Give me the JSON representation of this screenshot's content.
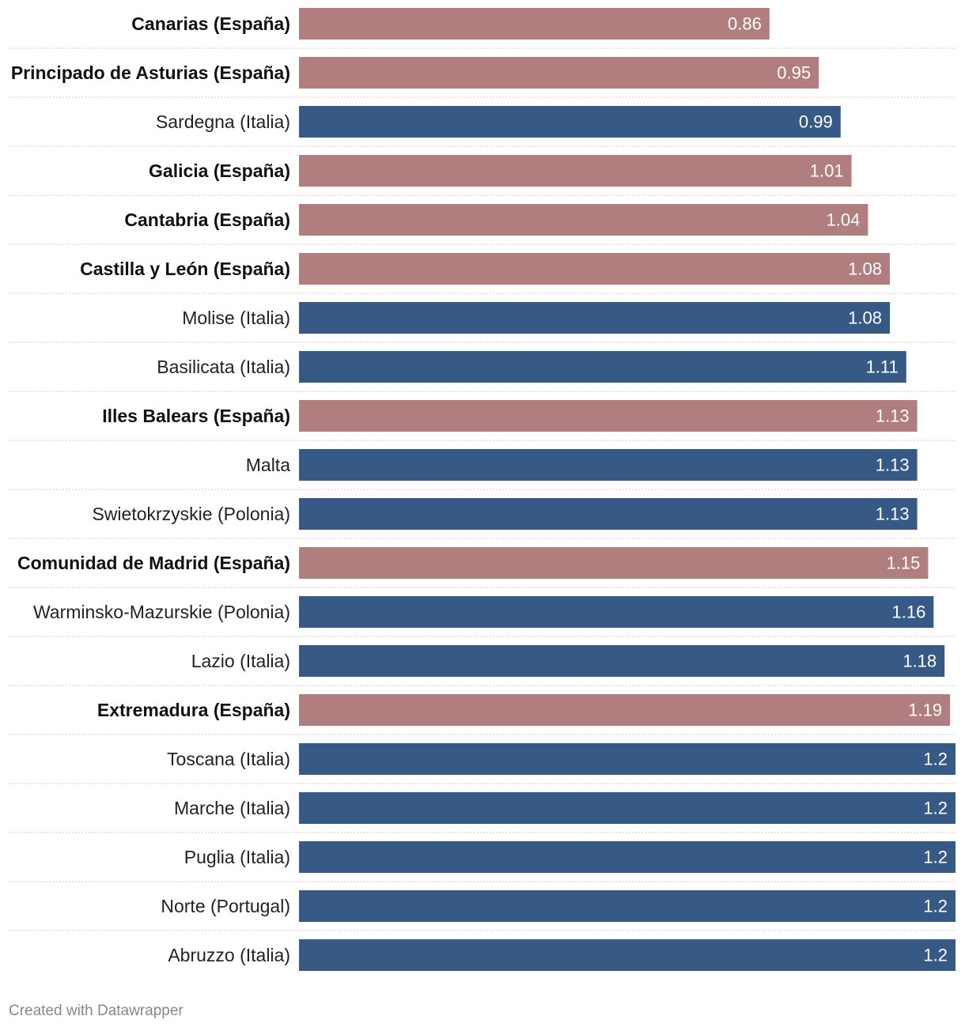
{
  "chart_data": {
    "type": "bar",
    "orientation": "horizontal",
    "xlim": [
      0,
      1.2
    ],
    "colors": {
      "spain": "#b07e7e",
      "other": "#365a85"
    },
    "rows": [
      {
        "label": "Canarias (España)",
        "value": 0.86,
        "display": "0.86",
        "highlight": true
      },
      {
        "label": "Principado de Asturias (España)",
        "value": 0.95,
        "display": "0.95",
        "highlight": true
      },
      {
        "label": "Sardegna (Italia)",
        "value": 0.99,
        "display": "0.99",
        "highlight": false
      },
      {
        "label": "Galicia (España)",
        "value": 1.01,
        "display": "1.01",
        "highlight": true
      },
      {
        "label": "Cantabria (España)",
        "value": 1.04,
        "display": "1.04",
        "highlight": true
      },
      {
        "label": "Castilla y León (España)",
        "value": 1.08,
        "display": "1.08",
        "highlight": true
      },
      {
        "label": "Molise (Italia)",
        "value": 1.08,
        "display": "1.08",
        "highlight": false
      },
      {
        "label": "Basilicata (Italia)",
        "value": 1.11,
        "display": "1.11",
        "highlight": false
      },
      {
        "label": "Illes Balears (España)",
        "value": 1.13,
        "display": "1.13",
        "highlight": true
      },
      {
        "label": "Malta",
        "value": 1.13,
        "display": "1.13",
        "highlight": false
      },
      {
        "label": "Swietokrzyskie (Polonia)",
        "value": 1.13,
        "display": "1.13",
        "highlight": false
      },
      {
        "label": "Comunidad de Madrid (España)",
        "value": 1.15,
        "display": "1.15",
        "highlight": true
      },
      {
        "label": "Warminsko-Mazurskie (Polonia)",
        "value": 1.16,
        "display": "1.16",
        "highlight": false
      },
      {
        "label": "Lazio (Italia)",
        "value": 1.18,
        "display": "1.18",
        "highlight": false
      },
      {
        "label": "Extremadura (España)",
        "value": 1.19,
        "display": "1.19",
        "highlight": true
      },
      {
        "label": "Toscana (Italia)",
        "value": 1.2,
        "display": "1.2",
        "highlight": false
      },
      {
        "label": "Marche (Italia)",
        "value": 1.2,
        "display": "1.2",
        "highlight": false
      },
      {
        "label": "Puglia (Italia)",
        "value": 1.2,
        "display": "1.2",
        "highlight": false
      },
      {
        "label": "Norte (Portugal)",
        "value": 1.2,
        "display": "1.2",
        "highlight": false
      },
      {
        "label": "Abruzzo (Italia)",
        "value": 1.2,
        "display": "1.2",
        "highlight": false
      }
    ]
  },
  "footer": {
    "credit": "Created with Datawrapper"
  }
}
